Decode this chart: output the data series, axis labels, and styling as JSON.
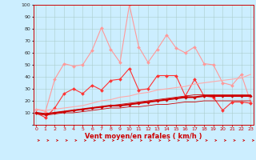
{
  "title": "",
  "xlabel": "Vent moyen/en rafales ( km/h )",
  "bg_color": "#cceeff",
  "grid_color": "#aacccc",
  "x": [
    0,
    1,
    2,
    3,
    4,
    5,
    6,
    7,
    8,
    9,
    10,
    11,
    12,
    13,
    14,
    15,
    16,
    17,
    18,
    19,
    20,
    21,
    22,
    23
  ],
  "ylim": [
    0,
    100
  ],
  "xlim": [
    -0.3,
    23.3
  ],
  "series": [
    {
      "color": "#ff9999",
      "linewidth": 0.8,
      "marker": "D",
      "markersize": 2.0,
      "values": [
        13,
        11,
        38,
        51,
        49,
        50,
        62,
        81,
        63,
        52,
        100,
        65,
        52,
        63,
        75,
        64,
        60,
        65,
        51,
        50,
        35,
        33,
        42,
        19
      ]
    },
    {
      "color": "#ff3333",
      "linewidth": 0.8,
      "marker": "D",
      "markersize": 2.0,
      "values": [
        10,
        6,
        14,
        26,
        30,
        26,
        33,
        29,
        37,
        38,
        47,
        29,
        30,
        41,
        41,
        41,
        24,
        38,
        24,
        23,
        12,
        19,
        19,
        18
      ]
    },
    {
      "color": "#ffaaaa",
      "linewidth": 0.8,
      "marker": null,
      "markersize": 0,
      "values": [
        13,
        12,
        13,
        14,
        15,
        16,
        18,
        20,
        21,
        23,
        24,
        26,
        27,
        29,
        30,
        31,
        32,
        34,
        35,
        36,
        37,
        38,
        39,
        42
      ]
    },
    {
      "color": "#ffaaaa",
      "linewidth": 0.8,
      "marker": null,
      "markersize": 0,
      "values": [
        10,
        9,
        10,
        11,
        12,
        13,
        14,
        15,
        16,
        16,
        17,
        18,
        19,
        20,
        21,
        22,
        23,
        23,
        24,
        24,
        24,
        24,
        24,
        24
      ]
    },
    {
      "color": "#cc0000",
      "linewidth": 1.5,
      "marker": "D",
      "markersize": 1.8,
      "values": [
        10,
        9,
        10,
        11,
        12,
        13,
        14,
        15,
        16,
        16,
        17,
        18,
        19,
        20,
        21,
        22,
        23,
        23,
        24,
        24,
        24,
        24,
        24,
        24
      ]
    },
    {
      "color": "#cc0000",
      "linewidth": 0.6,
      "marker": null,
      "markersize": 0,
      "values": [
        10,
        9,
        10,
        11,
        12,
        13,
        14,
        15,
        16,
        17,
        18,
        19,
        20,
        21,
        22,
        23,
        24,
        25,
        25,
        25,
        25,
        25,
        25,
        25
      ]
    },
    {
      "color": "#cc0000",
      "linewidth": 0.6,
      "marker": null,
      "markersize": 0,
      "values": [
        9,
        8,
        9,
        10,
        10,
        11,
        12,
        13,
        14,
        14,
        15,
        15,
        16,
        17,
        17,
        18,
        19,
        19,
        20,
        20,
        20,
        20,
        20,
        20
      ]
    }
  ],
  "yticks": [
    0,
    10,
    20,
    30,
    40,
    50,
    60,
    70,
    80,
    90,
    100
  ],
  "xticks": [
    0,
    1,
    2,
    3,
    4,
    5,
    6,
    7,
    8,
    9,
    10,
    11,
    12,
    13,
    14,
    15,
    16,
    17,
    18,
    19,
    20,
    21,
    22,
    23
  ]
}
